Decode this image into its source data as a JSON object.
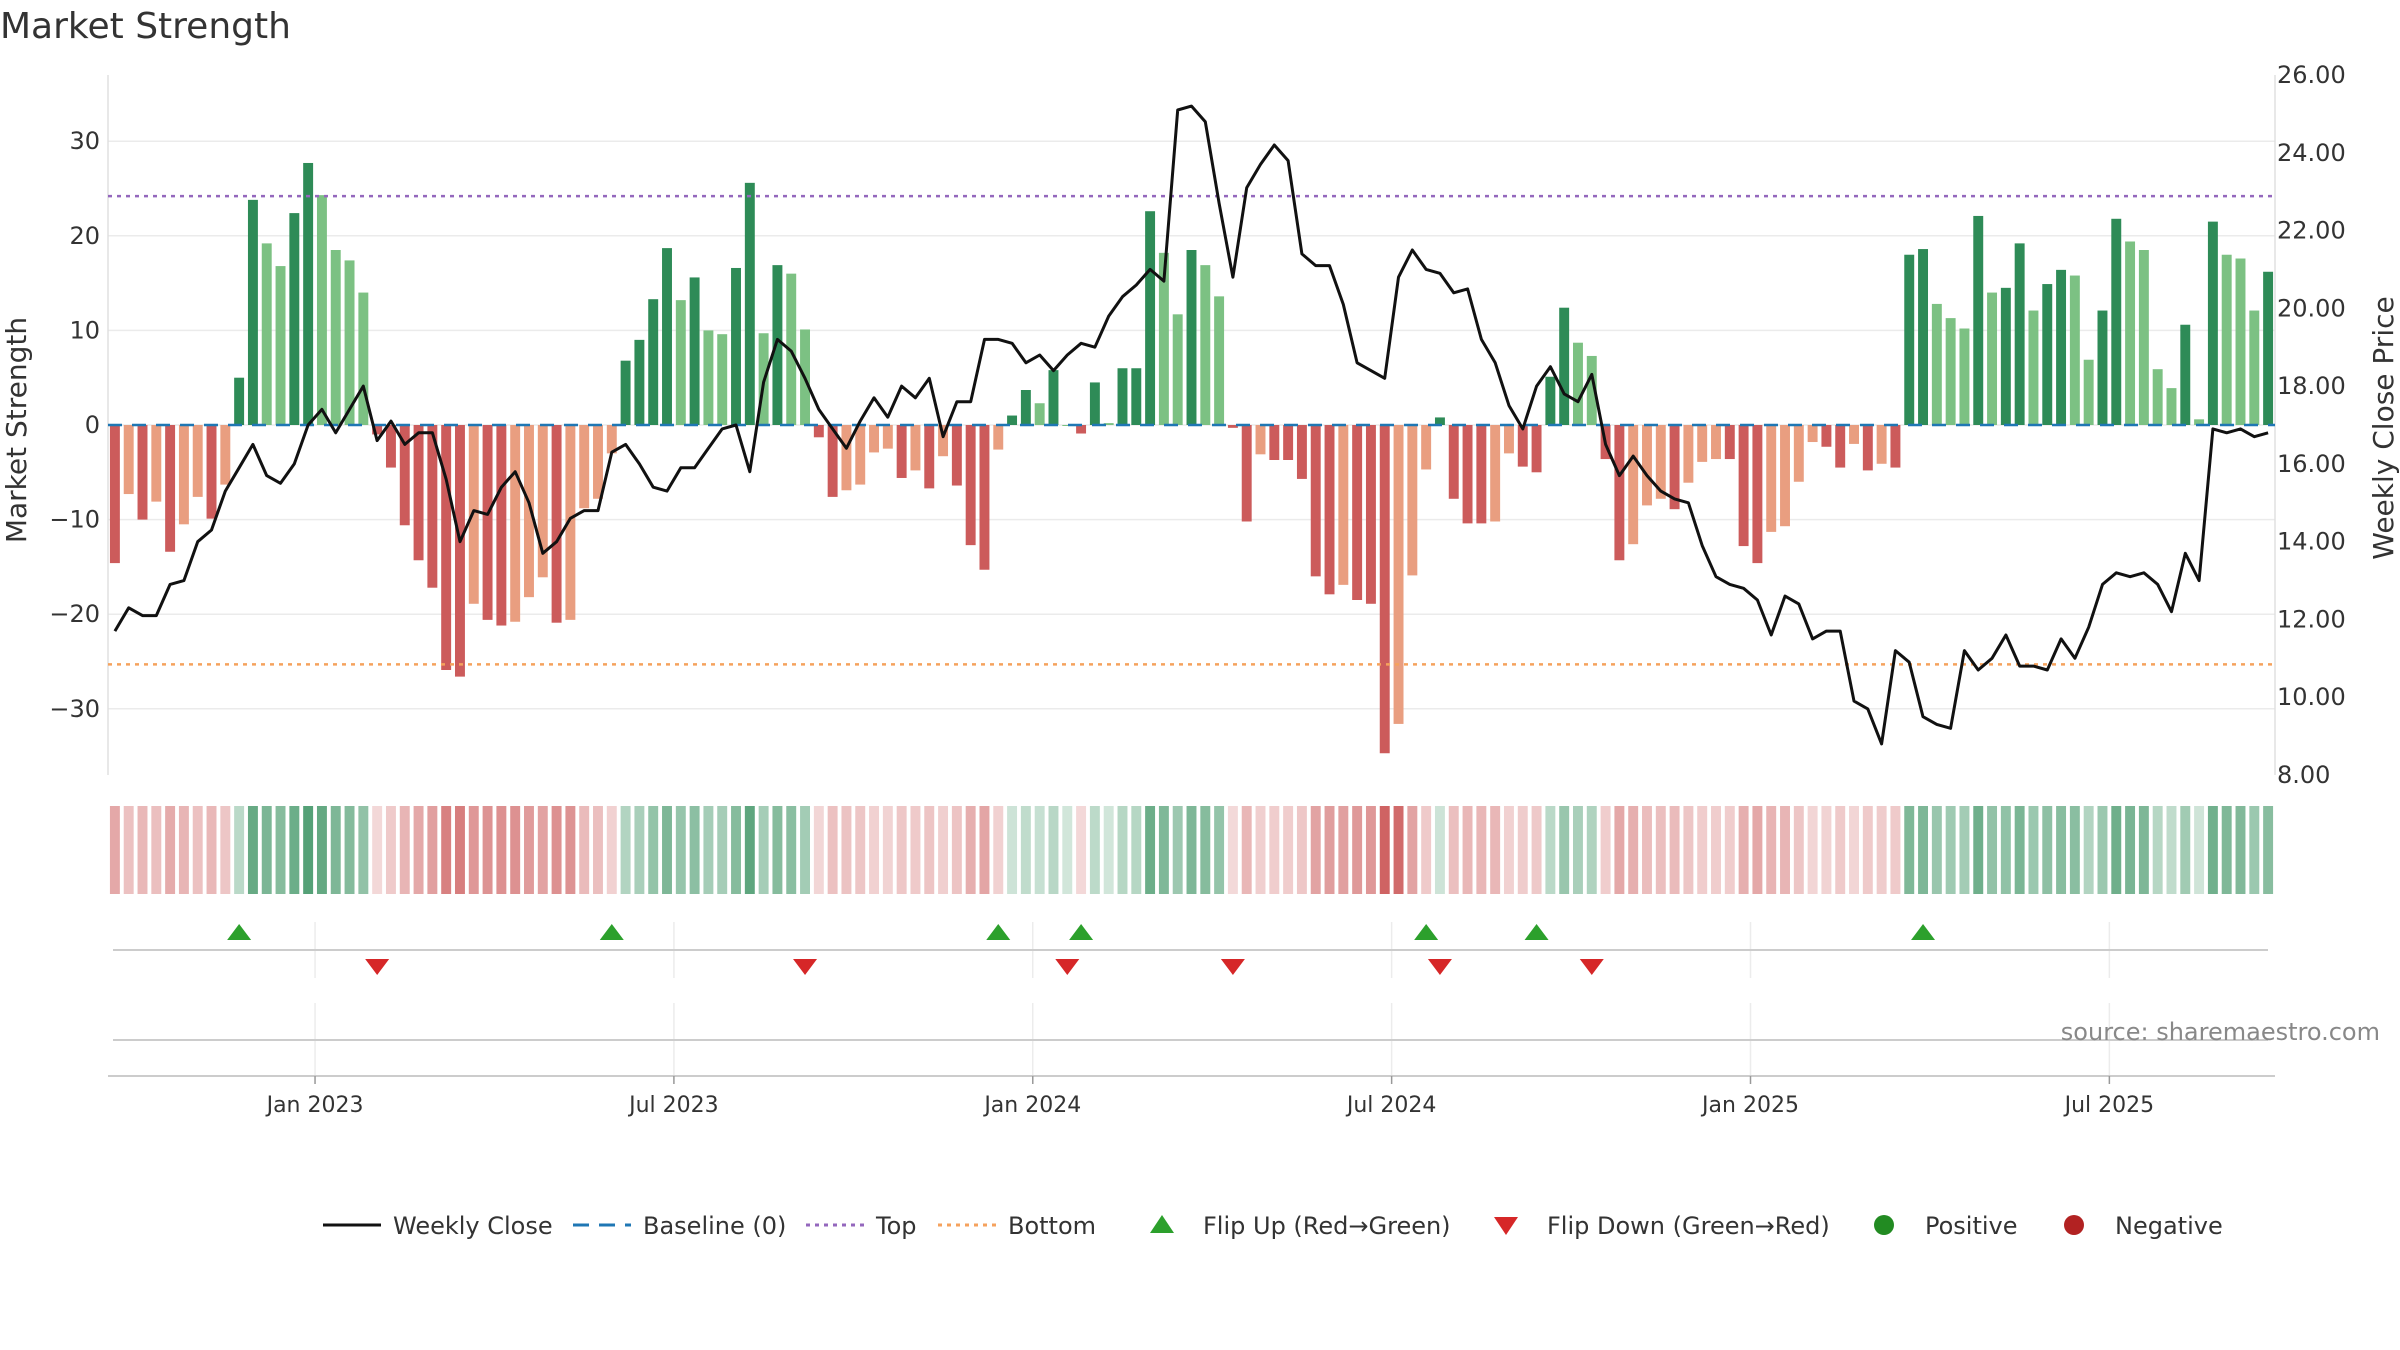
{
  "chart_data": {
    "type": "bar",
    "title": "Market Strength",
    "ylabel_left": "Market Strength",
    "ylabel_right": "Weekly Close Price",
    "source": "source: sharemaestro.com",
    "left_axis": {
      "range": [
        -37,
        37
      ],
      "ticks": [
        30,
        20,
        10,
        0,
        -10,
        -20,
        -30
      ],
      "tick_labels": [
        "30",
        "20",
        "10",
        "0",
        "−10",
        "−20",
        "−30"
      ]
    },
    "right_axis": {
      "range": [
        8.0,
        26.0
      ],
      "ticks": [
        26,
        24,
        22,
        20,
        18,
        16,
        14,
        12,
        10,
        8
      ],
      "tick_labels": [
        "26.00",
        "24.00",
        "22.00",
        "20.00",
        "18.00",
        "16.00",
        "14.00",
        "12.00",
        "10.00",
        "8.00"
      ]
    },
    "x_tick_labels": [
      "Jan 2023",
      "Jul 2023",
      "Jan 2024",
      "Jul 2024",
      "Jan 2025",
      "Jul 2025"
    ],
    "x_tick_weeks": [
      15,
      41,
      67,
      93,
      119,
      145
    ],
    "top_line": 24.2,
    "bottom_line": -25.3,
    "strength": [
      -14.6,
      -7.3,
      -10,
      -8.1,
      -13.4,
      -10.5,
      -7.6,
      -9.9,
      -6.3,
      5,
      23.8,
      19.2,
      16.8,
      22.4,
      27.7,
      24.3,
      18.5,
      17.4,
      14,
      -1,
      -4.5,
      -10.6,
      -14.3,
      -17.2,
      -25.9,
      -26.6,
      -18.9,
      -20.6,
      -21.2,
      -20.8,
      -18.2,
      -16.1,
      -20.9,
      -20.6,
      -8.8,
      -7.8,
      -3,
      6.8,
      9,
      13.3,
      18.7,
      13.2,
      15.6,
      10,
      9.6,
      16.6,
      25.6,
      9.7,
      16.9,
      16,
      10.1,
      -1.3,
      -7.6,
      -6.9,
      -6.3,
      -2.9,
      -2.5,
      -5.6,
      -4.8,
      -6.7,
      -3.3,
      -6.4,
      -12.7,
      -15.3,
      -2.6,
      1,
      3.7,
      2.3,
      5.8,
      0,
      -0.9,
      4.5,
      0.2,
      6,
      6,
      22.6,
      18.2,
      11.7,
      18.5,
      16.9,
      13.6,
      -0.3,
      -10.2,
      -3.1,
      -3.7,
      -3.7,
      -5.7,
      -16,
      -17.9,
      -16.9,
      -18.5,
      -18.9,
      -34.7,
      -31.6,
      -15.9,
      -4.7,
      0.8,
      -7.8,
      -10.4,
      -10.4,
      -10.2,
      -3,
      -4.4,
      -5,
      5.1,
      12.4,
      8.7,
      7.3,
      -3.6,
      -14.3,
      -12.6,
      -8.5,
      -7.8,
      -8.9,
      -6.1,
      -3.9,
      -3.6,
      -3.6,
      -12.8,
      -14.6,
      -11.3,
      -10.7,
      -6,
      -1.8,
      -2.3,
      -4.5,
      -2,
      -4.8,
      -4.1,
      -4.5,
      18,
      18.6,
      12.8,
      11.3,
      10.2,
      22.1,
      14,
      14.5,
      19.2,
      12.1,
      14.9,
      16.4,
      15.8,
      6.9,
      12.1,
      21.8,
      19.4,
      18.5,
      5.9,
      3.9,
      10.6,
      0.6,
      21.5,
      18,
      17.6,
      12.1,
      16.2
    ],
    "close": [
      11.7,
      12.3,
      12.1,
      12.1,
      12.9,
      13,
      14,
      14.3,
      15.3,
      15.9,
      16.5,
      15.7,
      15.5,
      16,
      17,
      17.4,
      16.8,
      17.4,
      18,
      16.6,
      17.1,
      16.5,
      16.8,
      16.8,
      15.6,
      14,
      14.8,
      14.7,
      15.4,
      15.8,
      15,
      13.7,
      14,
      14.6,
      14.8,
      14.8,
      16.3,
      16.5,
      16,
      15.4,
      15.3,
      15.9,
      15.9,
      16.4,
      16.9,
      17,
      15.8,
      18.1,
      19.2,
      18.9,
      18.2,
      17.4,
      16.9,
      16.4,
      17.1,
      17.7,
      17.2,
      18,
      17.7,
      18.2,
      16.7,
      17.6,
      17.6,
      19.2,
      19.2,
      19.1,
      18.6,
      18.8,
      18.4,
      18.8,
      19.1,
      19,
      19.8,
      20.3,
      20.6,
      21,
      20.7,
      25.1,
      25.2,
      24.8,
      22.7,
      20.8,
      23.1,
      23.7,
      24.2,
      23.8,
      21.4,
      21.1,
      21.1,
      20.1,
      18.6,
      18.4,
      18.2,
      20.8,
      21.5,
      21,
      20.9,
      20.4,
      20.5,
      19.2,
      18.6,
      17.5,
      16.9,
      18,
      18.5,
      17.8,
      17.6,
      18.3,
      16.5,
      15.7,
      16.2,
      15.7,
      15.3,
      15.1,
      15,
      13.9,
      13.1,
      12.9,
      12.8,
      12.5,
      11.6,
      12.6,
      12.4,
      11.5,
      11.7,
      11.7,
      9.9,
      9.7,
      8.8,
      11.2,
      10.9,
      9.5,
      9.3,
      9.2,
      11.2,
      10.7,
      11,
      11.6,
      10.8,
      10.8,
      10.7,
      11.5,
      11,
      11.8,
      12.9,
      13.2,
      13.1,
      13.2,
      12.9,
      12.2,
      13.7,
      13,
      16.9,
      16.8,
      16.9,
      16.7,
      16.8
    ],
    "flip_up_weeks": [
      9,
      36,
      64,
      70,
      95,
      103,
      131
    ],
    "flip_down_weeks": [
      19,
      50,
      69,
      81,
      96,
      107
    ],
    "colors": {
      "pos_dark": "#2e8b57",
      "pos_light": "#7cc183",
      "neg_dark": "#cc5b5b",
      "neg_light": "#e99e80",
      "close_line": "#111111",
      "baseline": "#1f77b4",
      "top_line": "#9467bd",
      "bottom_line": "#f5a25d",
      "flip_up": "#2ca02c",
      "flip_down": "#d62728",
      "positive_dot": "#228b22",
      "negative_dot": "#b22222"
    },
    "legend": [
      {
        "label": "Weekly Close",
        "kind": "line",
        "color": "#111111"
      },
      {
        "label": "Baseline (0)",
        "kind": "dash",
        "color": "#1f77b4"
      },
      {
        "label": "Top",
        "kind": "dot",
        "color": "#9467bd"
      },
      {
        "label": "Bottom",
        "kind": "dot",
        "color": "#f5a25d"
      },
      {
        "label": "Flip Up (Red→Green)",
        "kind": "tri-up",
        "color": "#2ca02c"
      },
      {
        "label": "Flip Down (Green→Red)",
        "kind": "tri-down",
        "color": "#d62728"
      },
      {
        "label": "Positive",
        "kind": "circle",
        "color": "#228b22"
      },
      {
        "label": "Negative",
        "kind": "circle",
        "color": "#b22222"
      }
    ],
    "legend_position": "bottom-center",
    "grid": true
  }
}
